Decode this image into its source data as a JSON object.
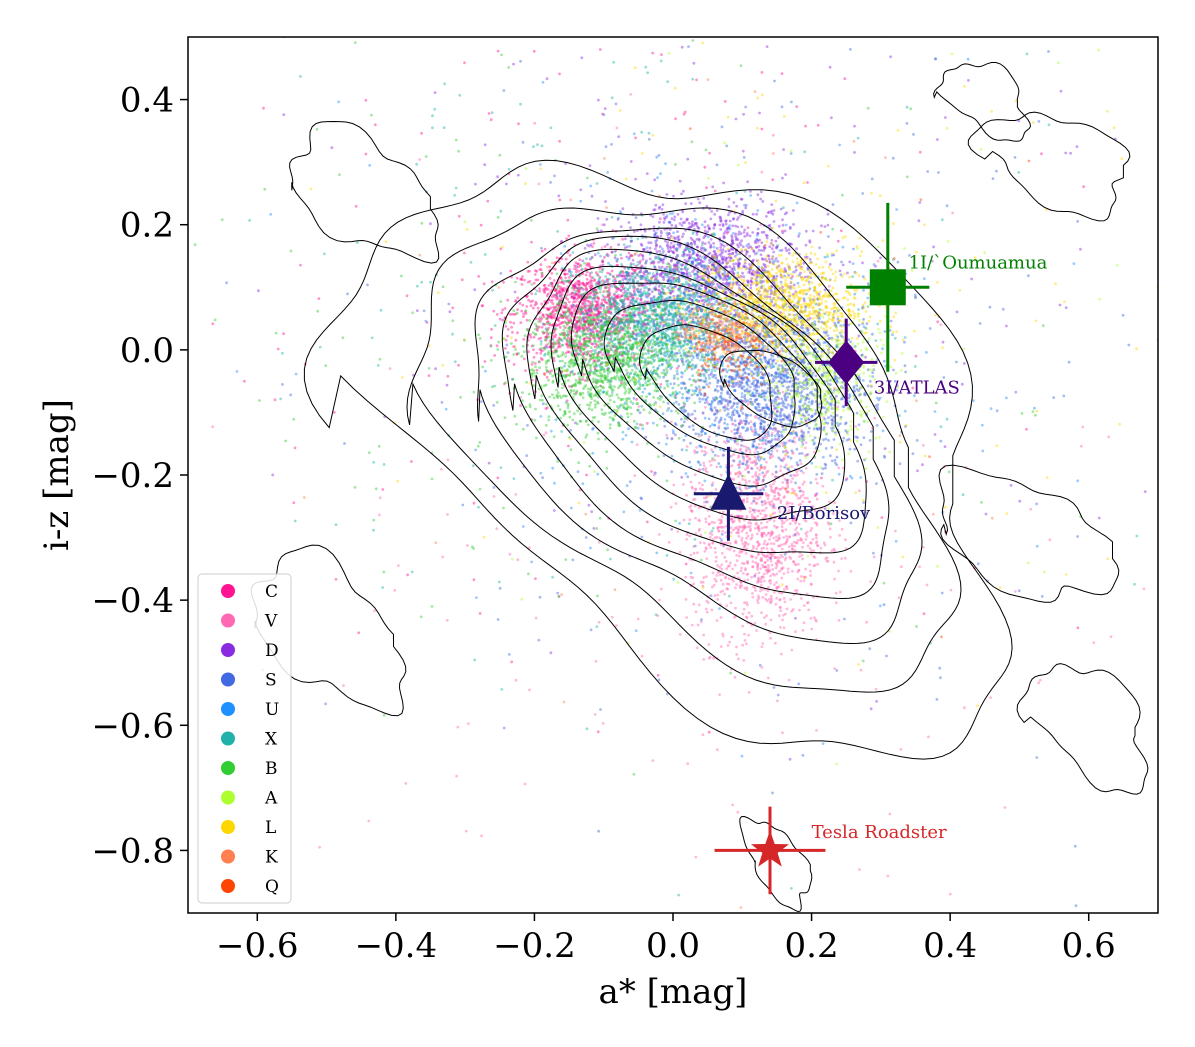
{
  "chart_data": {
    "type": "scatter",
    "xlabel": "a* [mag]",
    "ylabel": "i-z [mag]",
    "xlim": [
      -0.7,
      0.7
    ],
    "ylim": [
      -0.9,
      0.5
    ],
    "xticks": [
      -0.6,
      -0.4,
      -0.2,
      0.0,
      0.2,
      0.4,
      0.6
    ],
    "yticks": [
      0.4,
      0.2,
      0.0,
      -0.2,
      -0.4,
      -0.6,
      -0.8
    ],
    "xtick_labels": [
      "−0.6",
      "−0.4",
      "−0.2",
      "0.0",
      "0.2",
      "0.4",
      "0.6"
    ],
    "ytick_labels": [
      "0.4",
      "0.2",
      "0.0",
      "−0.2",
      "−0.4",
      "−0.6",
      "−0.8"
    ],
    "grid": false,
    "legend_position": "lower-left",
    "contours": "black density contours",
    "classes": [
      {
        "name": "C",
        "color": "#ff1493",
        "center": [
          -0.13,
          0.06
        ],
        "spread": [
          0.05,
          0.045
        ]
      },
      {
        "name": "V",
        "color": "#ff69b4",
        "center": [
          0.12,
          -0.28
        ],
        "spread": [
          0.05,
          0.09
        ]
      },
      {
        "name": "D",
        "color": "#8a2be2",
        "center": [
          0.05,
          0.13
        ],
        "spread": [
          0.07,
          0.05
        ]
      },
      {
        "name": "S",
        "color": "#4169e1",
        "center": [
          0.14,
          -0.05
        ],
        "spread": [
          0.07,
          0.07
        ]
      },
      {
        "name": "U",
        "color": "#1e90ff",
        "center": [
          0.05,
          0.0
        ],
        "spread": [
          0.12,
          0.12
        ]
      },
      {
        "name": "X",
        "color": "#20b2aa",
        "center": [
          -0.02,
          0.05
        ],
        "spread": [
          0.06,
          0.05
        ]
      },
      {
        "name": "B",
        "color": "#32cd32",
        "center": [
          -0.1,
          -0.02
        ],
        "spread": [
          0.06,
          0.05
        ]
      },
      {
        "name": "A",
        "color": "#adff2f",
        "center": [
          0.22,
          -0.05
        ],
        "spread": [
          0.04,
          0.05
        ]
      },
      {
        "name": "L",
        "color": "#ffd700",
        "center": [
          0.15,
          0.07
        ],
        "spread": [
          0.06,
          0.04
        ]
      },
      {
        "name": "K",
        "color": "#ff7f50",
        "center": [
          0.07,
          0.03
        ],
        "spread": [
          0.03,
          0.02
        ]
      },
      {
        "name": "Q",
        "color": "#ff4500",
        "center": [
          0.08,
          0.0
        ],
        "spread": [
          0.03,
          0.03
        ]
      }
    ],
    "objects": [
      {
        "name": "1I/`Oumuamua",
        "x": 0.31,
        "y": 0.1,
        "xerr": 0.06,
        "yerr": 0.135,
        "marker": "square",
        "color": "#008000",
        "label_dx": 0.03,
        "label_dy": 0.03
      },
      {
        "name": "3I/ATLAS",
        "x": 0.25,
        "y": -0.02,
        "xerr": 0.045,
        "yerr": 0.07,
        "marker": "diamond",
        "color": "#4b0082",
        "label_dx": 0.04,
        "label_dy": -0.05
      },
      {
        "name": "2I/Borisov",
        "x": 0.08,
        "y": -0.23,
        "xerr": 0.05,
        "yerr": 0.075,
        "marker": "triangle",
        "color": "#191970",
        "label_dx": 0.07,
        "label_dy": -0.04
      },
      {
        "name": "Tesla Roadster",
        "x": 0.14,
        "y": -0.8,
        "xerr": 0.08,
        "yerr": 0.07,
        "marker": "star",
        "color": "#d62728",
        "label_dx": 0.06,
        "label_dy": 0.02
      }
    ]
  }
}
